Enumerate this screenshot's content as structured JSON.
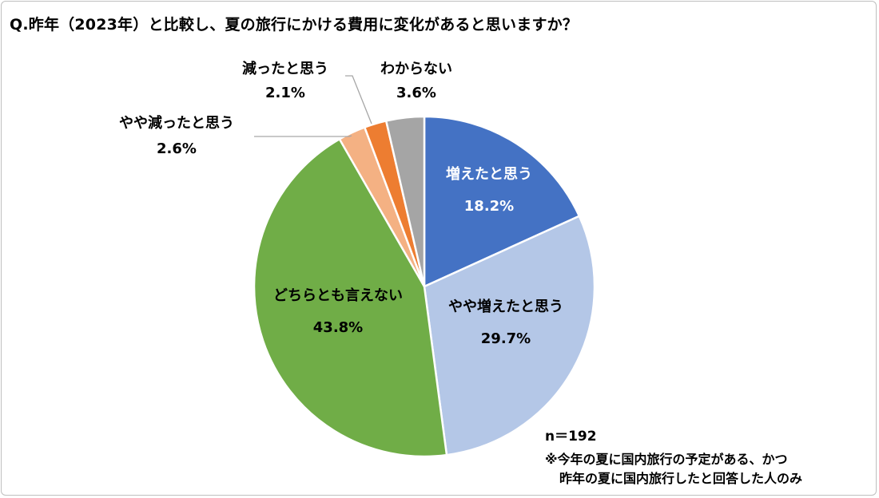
{
  "title": "Q.昨年（2023年）と比較し、夏の旅行にかける費用に変化があると思いますか？",
  "sample": "n＝192",
  "note": {
    "line1": "※今年の夏に国内旅行の予定がある、かつ",
    "line2": "昨年の夏に国内旅行したと回答した人のみ"
  },
  "chart_data": {
    "type": "pie",
    "start": "12 o'clock, clockwise",
    "slices": [
      {
        "label": "増えたと思う",
        "value": 18.2,
        "display": "18.2%",
        "color": "#4472c4",
        "label_color": "#ffffff",
        "label_position": "inside"
      },
      {
        "label": "やや増えたと思う",
        "value": 29.7,
        "display": "29.7%",
        "color": "#b4c7e7",
        "label_color": "#000000",
        "label_position": "inside"
      },
      {
        "label": "どちらとも言えない",
        "value": 43.8,
        "display": "43.8%",
        "color": "#70ad47",
        "label_color": "#000000",
        "label_position": "inside"
      },
      {
        "label": "やや減ったと思う",
        "value": 2.6,
        "display": "2.6%",
        "color": "#f4b183",
        "label_color": "#000000",
        "label_position": "outside"
      },
      {
        "label": "減ったと思う",
        "value": 2.1,
        "display": "2.1%",
        "color": "#ed7d31",
        "label_color": "#000000",
        "label_position": "outside"
      },
      {
        "label": "わからない",
        "value": 3.6,
        "display": "3.6%",
        "color": "#a5a5a5",
        "label_color": "#000000",
        "label_position": "outside"
      }
    ]
  }
}
